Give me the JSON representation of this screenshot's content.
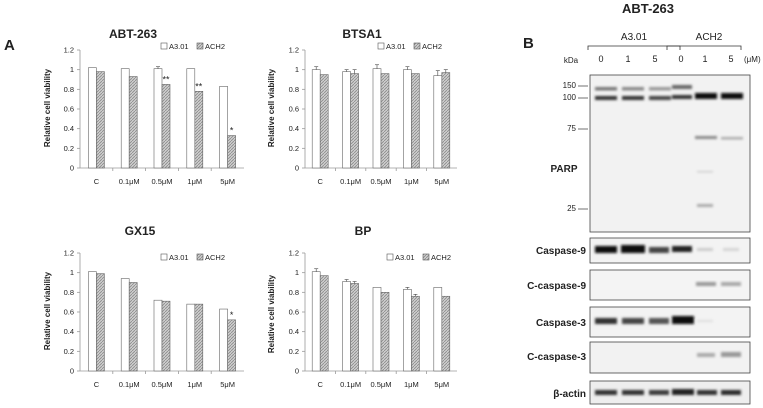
{
  "panel_labels": {
    "a": "A",
    "b": "B"
  },
  "legend_labels": [
    "A3.01",
    "ACH2"
  ],
  "colors": {
    "a301_fill": "#ffffff",
    "ach2_fill": "#c8c8c8",
    "ach2_hatch": "#8a8a8a",
    "axis": "#9a9a9a",
    "text": "#222222"
  },
  "chart_data": [
    {
      "type": "bar",
      "title": "ABT-263",
      "ylabel": "Relative cell viability",
      "categories": [
        "C",
        "0.1μM",
        "0.5μM",
        "1μM",
        "5μM"
      ],
      "ylim": [
        0,
        1.2
      ],
      "yticks": [
        "0",
        "0.2",
        "0.4",
        "0.6",
        "0.8",
        "1",
        "1.2"
      ],
      "series": [
        {
          "name": "A3.01",
          "values": [
            1.02,
            1.01,
            1.01,
            1.01,
            0.83
          ],
          "errors": [
            0,
            0,
            0.02,
            0,
            0
          ]
        },
        {
          "name": "ACH2",
          "values": [
            0.98,
            0.93,
            0.85,
            0.78,
            0.33
          ],
          "errors": [
            0,
            0,
            0,
            0,
            0
          ]
        }
      ],
      "significance": [
        "",
        "",
        "**",
        "**",
        "*"
      ]
    },
    {
      "type": "bar",
      "title": "BTSA1",
      "ylabel": "Relative cell viability",
      "categories": [
        "C",
        "0.1μM",
        "0.5μM",
        "1μM",
        "5μM"
      ],
      "ylim": [
        0,
        1.2
      ],
      "yticks": [
        "0",
        "0.2",
        "0.4",
        "0.6",
        "0.8",
        "1",
        "1.2"
      ],
      "series": [
        {
          "name": "A3.01",
          "values": [
            1.0,
            0.98,
            1.01,
            1.0,
            0.94
          ],
          "errors": [
            0.03,
            0.02,
            0.04,
            0.03,
            0.05
          ]
        },
        {
          "name": "ACH2",
          "values": [
            0.95,
            0.96,
            0.96,
            0.96,
            0.97
          ],
          "errors": [
            0,
            0.04,
            0,
            0,
            0.03
          ]
        }
      ],
      "significance": [
        "",
        "",
        "",
        "",
        ""
      ]
    },
    {
      "type": "bar",
      "title": "GX15",
      "ylabel": "Relative cell viability",
      "categories": [
        "C",
        "0.1μM",
        "0.5μM",
        "1μM",
        "5μM"
      ],
      "ylim": [
        0,
        1.2
      ],
      "yticks": [
        "0",
        "0.2",
        "0.4",
        "0.6",
        "0.8",
        "1",
        "1.2"
      ],
      "series": [
        {
          "name": "A3.01",
          "values": [
            1.01,
            0.94,
            0.72,
            0.68,
            0.63
          ],
          "errors": [
            0,
            0,
            0,
            0,
            0
          ]
        },
        {
          "name": "ACH2",
          "values": [
            0.99,
            0.9,
            0.71,
            0.68,
            0.52
          ],
          "errors": [
            0,
            0,
            0,
            0,
            0
          ]
        }
      ],
      "significance": [
        "",
        "",
        "",
        "",
        "*"
      ]
    },
    {
      "type": "bar",
      "title": "BP",
      "ylabel": "Relative cell viability",
      "categories": [
        "C",
        "0.1μM",
        "0.5μM",
        "1μM",
        "5μM"
      ],
      "ylim": [
        0,
        1.2
      ],
      "yticks": [
        "0",
        "0.2",
        "0.4",
        "0.6",
        "0.8",
        "1",
        "1.2"
      ],
      "series": [
        {
          "name": "A3.01",
          "values": [
            1.01,
            0.91,
            0.85,
            0.83,
            0.85
          ],
          "errors": [
            0.03,
            0.02,
            0,
            0.02,
            0
          ]
        },
        {
          "name": "ACH2",
          "values": [
            0.97,
            0.89,
            0.8,
            0.76,
            0.76
          ],
          "errors": [
            0,
            0.02,
            0,
            0.02,
            0
          ]
        }
      ],
      "significance": [
        "",
        "",
        "",
        "",
        ""
      ]
    }
  ],
  "blot": {
    "title": "ABT-263",
    "cell_lines": [
      "A3.01",
      "ACH2"
    ],
    "doses": [
      "0",
      "1",
      "5",
      "0",
      "1",
      "5"
    ],
    "dose_unit": "(μM)",
    "kda_label": "kDa",
    "markers": [
      "150",
      "100",
      "75",
      "25"
    ],
    "parp_label": "PARP",
    "strip_labels": [
      "Caspase-9",
      "C-caspase-9",
      "Caspase-3",
      "C-caspase-3",
      "β-actin"
    ]
  }
}
